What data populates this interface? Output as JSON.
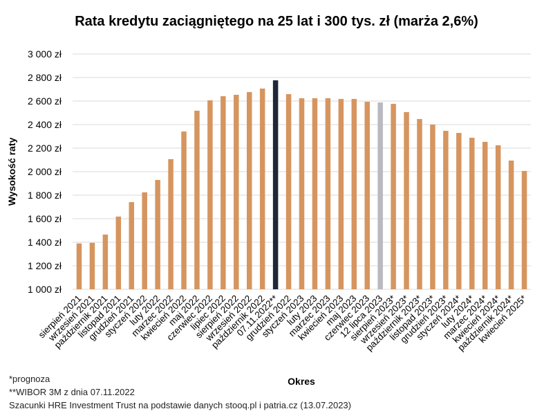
{
  "chart_data": {
    "type": "bar",
    "title": "Rata kredytu zaciągniętego na 25 lat i 300 tys. zł (marża 2,6%)",
    "xlabel": "Okres",
    "ylabel": "Wysokość raty",
    "ylim": [
      1000,
      3000
    ],
    "yticks": [
      "1 000 zł",
      "1 200 zł",
      "1 400 zł",
      "1 600 zł",
      "1 800 zł",
      "2 000 zł",
      "2 200 zł",
      "2 400 zł",
      "2 600 zł",
      "2 800 zł",
      "3 000 zł"
    ],
    "grid": true,
    "categories": [
      "sierpień 2021",
      "wrzesień 2021",
      "październik 2021",
      "listopad 2021",
      "grudzień 2021",
      "styczeń 2022",
      "luty 2022",
      "marzec 2022",
      "kwiecień 2022",
      "maj 2022",
      "czerwiec 2022",
      "lipiec 2022",
      "sierpień 2022",
      "wrzesień 2022",
      "październik 2022",
      "07.11.2022**",
      "grudzień 2022",
      "styczeń 2023",
      "luty 2023",
      "marzec 2023",
      "kwiecień 2023",
      "maj 2023",
      "czerwiec 2023",
      "12 lipca 2023",
      "sierpień 2023*",
      "wrzesień 2023*",
      "październik 2023*",
      "listopad 2023*",
      "grudzień 2023*",
      "styczeń 2024*",
      "luty 2024*",
      "marzec 2024*",
      "kwiecień 2024*",
      "październik 2024*",
      "kwiecień 2025*"
    ],
    "values": [
      1390,
      1395,
      1465,
      1618,
      1741,
      1824,
      1929,
      2106,
      2341,
      2518,
      2606,
      2641,
      2653,
      2676,
      2706,
      2776,
      2659,
      2624,
      2624,
      2624,
      2618,
      2618,
      2594,
      2588,
      2576,
      2506,
      2447,
      2400,
      2347,
      2329,
      2288,
      2253,
      2224,
      2094,
      2006
    ],
    "highlight": {
      "07.11.2022**": "#1f2838",
      "12 lipca 2023": "#b9b9c1"
    },
    "bar_color": "#d6955f"
  },
  "footnotes": {
    "forecast": "*prognoza",
    "wibor": "**WIBOR 3M z dnia 07.11.2022",
    "source": "Szacunki HRE Investment Trust na podstawie danych stooq.pl i patria.cz (13.07.2023)"
  }
}
